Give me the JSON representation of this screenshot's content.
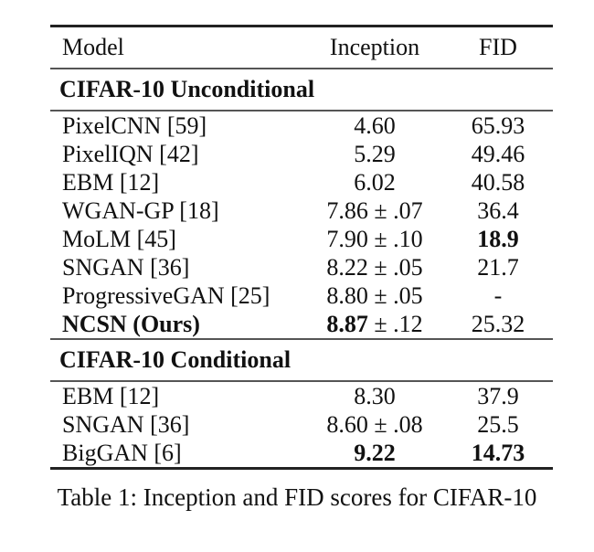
{
  "caption": "Table 1: Inception and FID scores for CIFAR-10",
  "table": {
    "columns": [
      "Model",
      "Inception",
      "FID"
    ],
    "sections": [
      {
        "header": "CIFAR-10 Unconditional",
        "rows": [
          {
            "model": "PixelCNN [59]",
            "model_bold": false,
            "inc_bold": "",
            "inc": "4.60",
            "fid": "65.93",
            "fid_bold": false
          },
          {
            "model": "PixelIQN [42]",
            "model_bold": false,
            "inc_bold": "",
            "inc": "5.29",
            "fid": "49.46",
            "fid_bold": false
          },
          {
            "model": "EBM [12]",
            "model_bold": false,
            "inc_bold": "",
            "inc": "6.02",
            "fid": "40.58",
            "fid_bold": false
          },
          {
            "model": "WGAN-GP [18]",
            "model_bold": false,
            "inc_bold": "",
            "inc": "7.86 ± .07",
            "fid": "36.4",
            "fid_bold": false
          },
          {
            "model": "MoLM [45]",
            "model_bold": false,
            "inc_bold": "",
            "inc": "7.90 ± .10",
            "fid": "18.9",
            "fid_bold": true
          },
          {
            "model": "SNGAN [36]",
            "model_bold": false,
            "inc_bold": "",
            "inc": "8.22 ± .05",
            "fid": "21.7",
            "fid_bold": false
          },
          {
            "model": "ProgressiveGAN [25]",
            "model_bold": false,
            "inc_bold": "",
            "inc": "8.80 ± .05",
            "fid": "-",
            "fid_bold": false
          },
          {
            "model": "NCSN (Ours)",
            "model_bold": true,
            "inc_bold": "8.87",
            "inc": " ± .12",
            "fid": "25.32",
            "fid_bold": false
          }
        ]
      },
      {
        "header": "CIFAR-10 Conditional",
        "rows": [
          {
            "model": "EBM [12]",
            "model_bold": false,
            "inc_bold": "",
            "inc": "8.30",
            "fid": "37.9",
            "fid_bold": false
          },
          {
            "model": "SNGAN [36]",
            "model_bold": false,
            "inc_bold": "",
            "inc": "8.60 ± .08",
            "fid": "25.5",
            "fid_bold": false
          },
          {
            "model": "BigGAN [6]",
            "model_bold": false,
            "inc_bold": "9.22",
            "inc": "",
            "fid": "14.73",
            "fid_bold": true
          }
        ]
      }
    ]
  },
  "colors": {
    "text": "#111111",
    "rule_heavy": "#222222",
    "rule_light": "#555555",
    "background": "#ffffff"
  }
}
